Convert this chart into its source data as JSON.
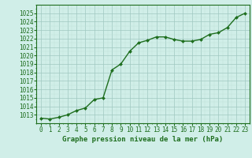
{
  "x": [
    0,
    1,
    2,
    3,
    4,
    5,
    6,
    7,
    8,
    9,
    10,
    11,
    12,
    13,
    14,
    15,
    16,
    17,
    18,
    19,
    20,
    21,
    22,
    23
  ],
  "y": [
    1012.6,
    1012.5,
    1012.7,
    1013.0,
    1013.5,
    1013.8,
    1014.8,
    1015.0,
    1018.3,
    1019.0,
    1020.5,
    1021.5,
    1021.8,
    1022.2,
    1022.2,
    1021.9,
    1021.7,
    1021.7,
    1021.9,
    1022.5,
    1022.7,
    1023.3,
    1024.5,
    1025.0
  ],
  "line_color": "#1e6e1e",
  "marker_color": "#1e6e1e",
  "bg_color": "#d0eee8",
  "grid_color_major": "#a0c8c0",
  "grid_color_minor": "#c0e0d8",
  "xlabel": "Graphe pression niveau de la mer (hPa)",
  "xlabel_color": "#1e6e1e",
  "tick_color": "#1e6e1e",
  "ylim_min": 1012,
  "ylim_max": 1026,
  "xlim_min": -0.5,
  "xlim_max": 23.5,
  "xtick_labels": [
    "0",
    "1",
    "2",
    "3",
    "4",
    "5",
    "6",
    "7",
    "8",
    "9",
    "10",
    "11",
    "12",
    "13",
    "14",
    "15",
    "16",
    "17",
    "18",
    "19",
    "20",
    "21",
    "22",
    "23"
  ],
  "ytick_labels": [
    "1013",
    "1014",
    "1015",
    "1016",
    "1017",
    "1018",
    "1019",
    "1020",
    "1021",
    "1022",
    "1023",
    "1024",
    "1025"
  ],
  "ytick_values": [
    1013,
    1014,
    1015,
    1016,
    1017,
    1018,
    1019,
    1020,
    1021,
    1022,
    1023,
    1024,
    1025
  ],
  "marker_size": 2.0,
  "line_width": 1.0,
  "font_size_tick": 5.5,
  "font_size_xlabel": 6.5
}
